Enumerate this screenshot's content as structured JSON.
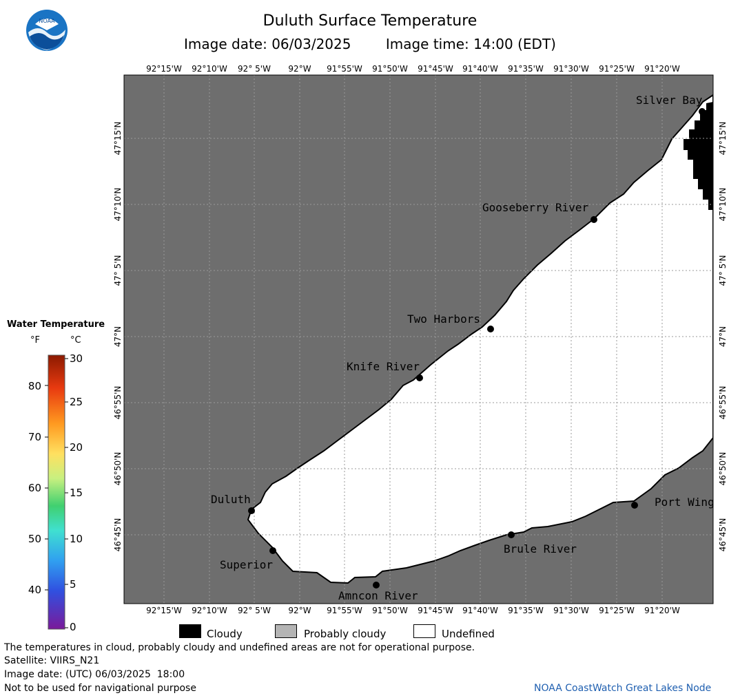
{
  "header": {
    "title": "Duluth Surface Temperature",
    "image_date": "Image date: 06/03/2025",
    "image_time": "Image time: 14:00 (EDT)"
  },
  "logo": {
    "text": "NOAA",
    "icon": "noaa-logo-icon"
  },
  "map": {
    "lon_labels": [
      "92°15'W",
      "92°10'W",
      "92° 5'W",
      "92°W",
      "91°55'W",
      "91°50'W",
      "91°45'W",
      "91°40'W",
      "91°35'W",
      "91°30'W",
      "91°25'W",
      "91°20'W"
    ],
    "lat_labels": [
      "47°15'N",
      "47°10'N",
      "47° 5'N",
      "47°N",
      "46°55'N",
      "46°50'N",
      "46°45'N"
    ],
    "places": [
      "Silver Bay",
      "Gooseberry River",
      "Two Harbors",
      "Knife River",
      "Duluth",
      "Superior",
      "Amncon River",
      "Brule River",
      "Port Wing"
    ],
    "colors": {
      "land": "#6e6e6e",
      "water_undefined": "#ffffff",
      "cloud": "#000000",
      "grid": "#9a9a9a"
    }
  },
  "legend": {
    "title": "Water Temperature",
    "unit_f": "°F",
    "unit_c": "°C",
    "f_ticks": [
      "80",
      "70",
      "60",
      "50",
      "40"
    ],
    "c_ticks": [
      "30",
      "25",
      "20",
      "15",
      "10",
      "5",
      "0"
    ]
  },
  "key": [
    {
      "label": "Cloudy",
      "color": "#000000"
    },
    {
      "label": "Probably cloudy",
      "color": "#b4b4b4"
    },
    {
      "label": "Undefined",
      "color": "#ffffff"
    }
  ],
  "footer": {
    "disclaimer": "The temperatures in cloud, probably cloudy and undefined areas are not for operational purpose.",
    "satellite": "Satellite: VIIRS_N21",
    "utc_date": "Image date: (UTC) 06/03/2025  18:00",
    "nav": "Not to be used for navigational purpose",
    "credit": "NOAA CoastWatch Great Lakes Node"
  }
}
